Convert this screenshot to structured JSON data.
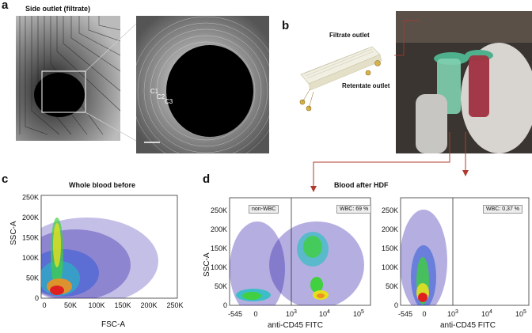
{
  "panels": {
    "a": {
      "letter": "a",
      "title": "Side outlet (filtrate)",
      "labels": [
        "C1",
        "C2",
        "C3"
      ]
    },
    "b": {
      "letter": "b",
      "filtrate_outlet": "Filtrate outlet",
      "retentate_outlet": "Retentate outlet"
    },
    "c": {
      "letter": "c",
      "title": "Whole blood before",
      "xlabel": "FSC-A",
      "ylabel": "SSC-A",
      "xticks": [
        "0",
        "50K",
        "100K",
        "150K",
        "200K",
        "250K"
      ],
      "yticks": [
        "0",
        "50K",
        "100K",
        "150K",
        "200K",
        "250K"
      ]
    },
    "d": {
      "letter": "d",
      "title": "Blood after HDF",
      "left": {
        "gate_left": "non-WBC",
        "gate_right": "WBC: 69 %",
        "xlabel": "anti-CD45 FITC",
        "ylabel": "SSC-A",
        "yticks": [
          "0",
          "50K",
          "100K",
          "150K",
          "200K",
          "250K"
        ]
      },
      "right": {
        "gate_right": "WBC: 0,37 %",
        "xlabel": "anti-CD45 FITC",
        "yticks": [
          "0",
          "50K",
          "100K",
          "150K",
          "200K",
          "250K"
        ]
      },
      "xticks": [
        {
          "base": "-545",
          "exp": ""
        },
        {
          "base": "0",
          "exp": ""
        },
        {
          "base": "10",
          "exp": "3"
        },
        {
          "base": "10",
          "exp": "4"
        },
        {
          "base": "10",
          "exp": "5"
        }
      ]
    }
  },
  "colors": {
    "arrow": "#b03a2e",
    "density_low": "#2a1aa8",
    "density_high": "#e02020"
  }
}
